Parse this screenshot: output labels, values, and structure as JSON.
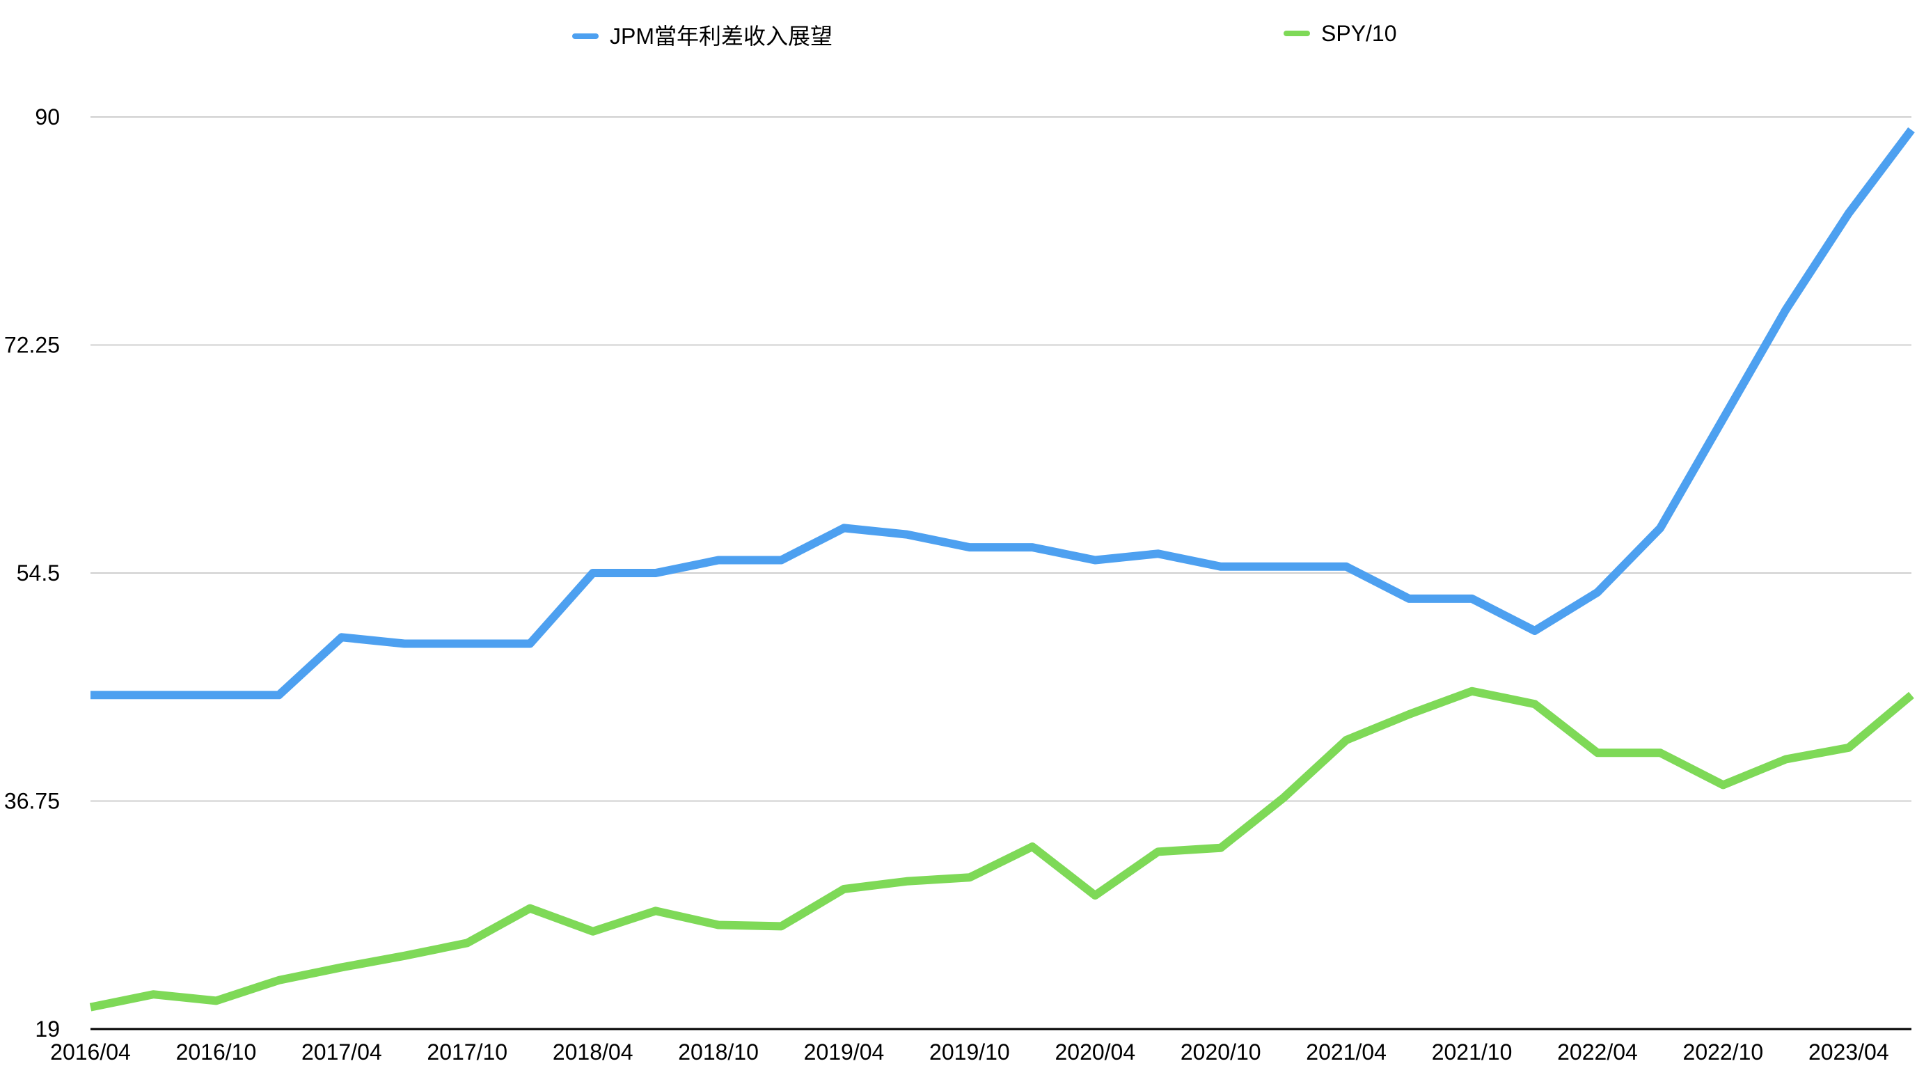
{
  "chart_data": {
    "type": "line",
    "title": "",
    "xlabel": "",
    "ylabel": "",
    "x_tick_labels": [
      "2016/04",
      "2016/10",
      "2017/04",
      "2017/10",
      "2018/04",
      "2018/10",
      "2019/04",
      "2019/10",
      "2020/04",
      "2020/10",
      "2021/04",
      "2021/10",
      "2022/04",
      "2022/10",
      "2023/04"
    ],
    "x_range": [
      "2016/04",
      "2023/07"
    ],
    "x": [
      "2016/04",
      "2016/07",
      "2016/10",
      "2017/01",
      "2017/04",
      "2017/07",
      "2017/10",
      "2018/01",
      "2018/04",
      "2018/07",
      "2018/10",
      "2019/01",
      "2019/04",
      "2019/07",
      "2019/10",
      "2020/01",
      "2020/04",
      "2020/07",
      "2020/10",
      "2021/01",
      "2021/04",
      "2021/07",
      "2021/10",
      "2022/01",
      "2022/04",
      "2022/07",
      "2022/10",
      "2023/01",
      "2023/04",
      "2023/07"
    ],
    "y_ticks": [
      "19",
      "36.75",
      "54.5",
      "72.25",
      "90"
    ],
    "ylim": [
      19,
      90
    ],
    "grid": true,
    "legend_position": "top",
    "series": [
      {
        "name": "JPM當年利差收入展望",
        "color": "#4da0f0",
        "values": [
          45,
          45,
          45,
          45,
          49.5,
          49,
          49,
          49,
          54.5,
          54.5,
          55.5,
          55.5,
          58,
          57.5,
          56.5,
          56.5,
          55.5,
          56,
          55,
          55,
          55,
          52.5,
          52.5,
          50,
          53,
          58,
          66.5,
          75,
          82.5,
          89
        ]
      },
      {
        "name": "SPY/10",
        "color": "#7ed957",
        "values": [
          20.7,
          21.7,
          21.2,
          22.8,
          23.8,
          24.7,
          25.7,
          28.4,
          26.6,
          28.2,
          27.1,
          27.0,
          29.9,
          30.5,
          30.8,
          33.2,
          29.4,
          32.8,
          33.1,
          37.0,
          41.5,
          43.5,
          45.3,
          44.3,
          40.5,
          40.5,
          38.0,
          40.0,
          40.9,
          45.0
        ]
      }
    ]
  }
}
